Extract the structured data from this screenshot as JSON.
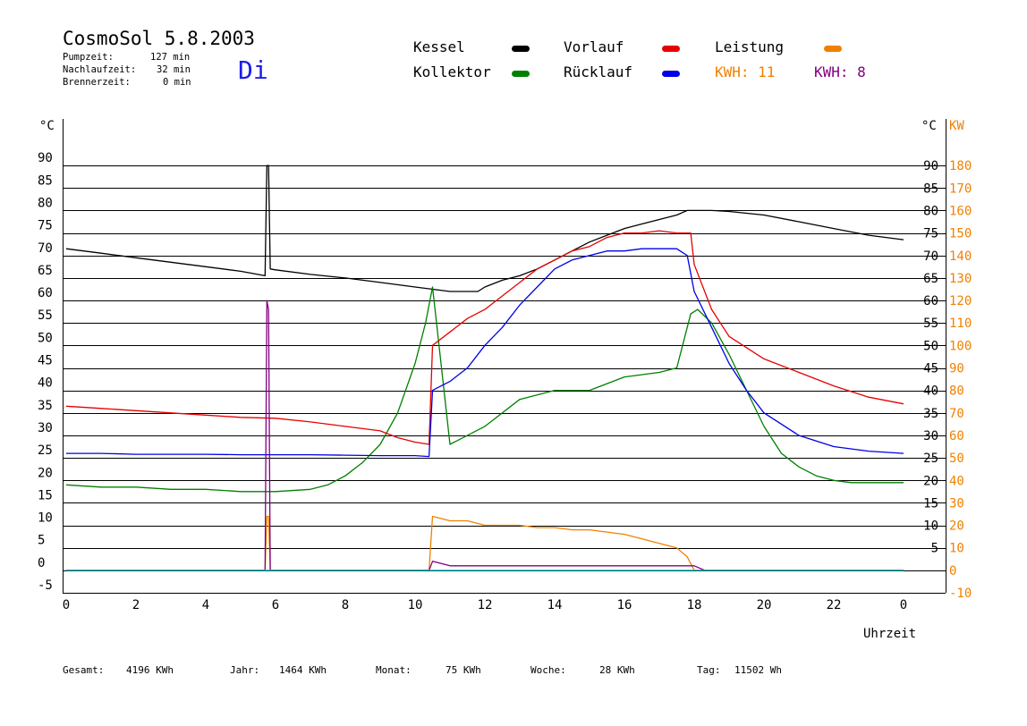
{
  "header": {
    "title": "CosmoSol 5.8.2003",
    "day": "Di",
    "stats": [
      {
        "label": "Pumpzeit:",
        "value": "127 min"
      },
      {
        "label": "Nachlaufzeit:",
        "value": "32 min"
      },
      {
        "label": "Brennerzeit:",
        "value": "0 min"
      }
    ]
  },
  "legend": {
    "kessel": {
      "label": "Kessel",
      "color": "#000000"
    },
    "vorlauf": {
      "label": "Vorlauf",
      "color": "#e60000"
    },
    "leistung": {
      "label": "Leistung",
      "color": "#f08000"
    },
    "kollektor": {
      "label": "Kollektor",
      "color": "#008000"
    },
    "ruecklauf": {
      "label": "Rücklauf",
      "color": "#0000e6"
    },
    "kwh1": "KWH: 11",
    "kwh2": "KWH: 8",
    "kwh1_color": "#f08000",
    "kwh2_color": "#800080"
  },
  "footer": {
    "gesamt_label": "Gesamt:",
    "gesamt_value": "4196 KWh",
    "jahr_label": "Jahr:",
    "jahr_value": "1464 KWh",
    "monat_label": "Monat:",
    "monat_value": "75 KWh",
    "woche_label": "Woche:",
    "woche_value": "28 KWh",
    "tag_label": "Tag:",
    "tag_value": "11502 Wh"
  },
  "chart_data": {
    "type": "line",
    "xlabel": "Uhrzeit",
    "ylabel_left": "°C",
    "ylabel_right": "KW",
    "xlim": [
      0,
      24
    ],
    "ylim_left": [
      -5,
      95
    ],
    "ylim_right": [
      -10,
      190
    ],
    "x_ticks": [
      "0",
      "2",
      "4",
      "6",
      "8",
      "10",
      "12",
      "14",
      "16",
      "18",
      "20",
      "22",
      "0"
    ],
    "y_ticks_left": [
      "-5",
      "0",
      "5",
      "10",
      "15",
      "20",
      "25",
      "30",
      "35",
      "40",
      "45",
      "50",
      "55",
      "60",
      "65",
      "70",
      "75",
      "80",
      "85",
      "90"
    ],
    "y_ticks_right_temp": [
      "5",
      "10",
      "15",
      "20",
      "25",
      "30",
      "35",
      "40",
      "45",
      "50",
      "55",
      "60",
      "65",
      "70",
      "75",
      "80",
      "85",
      "90"
    ],
    "y_ticks_right_kw": [
      "-10",
      "0",
      "10",
      "20",
      "30",
      "40",
      "50",
      "60",
      "70",
      "80",
      "90",
      "100",
      "110",
      "120",
      "130",
      "140",
      "150",
      "160",
      "170",
      "180"
    ],
    "grid": "horizontal",
    "series": [
      {
        "name": "Kessel",
        "color": "#000000",
        "x": [
          0,
          1,
          2,
          3,
          4,
          5,
          5.7,
          5.75,
          5.8,
          5.85,
          6,
          7,
          8,
          9,
          10,
          10.5,
          11,
          11.5,
          11.8,
          12,
          12.5,
          13,
          13.5,
          14,
          14.5,
          15,
          15.5,
          16,
          16.5,
          17,
          17.5,
          17.8,
          18,
          18.5,
          19,
          20,
          21,
          22,
          23,
          24
        ],
        "y": [
          71.5,
          70.5,
          69.5,
          68.5,
          67.5,
          66.5,
          65.5,
          90,
          90,
          67,
          66.8,
          65.8,
          65,
          64,
          63,
          62.5,
          62,
          62,
          62,
          63,
          64.5,
          65.5,
          67,
          69,
          71,
          73,
          74.5,
          76,
          77,
          78,
          79,
          80,
          80,
          80,
          79.8,
          79,
          77.5,
          76,
          74.5,
          73.5
        ]
      },
      {
        "name": "Kollektor",
        "color": "#008000",
        "x": [
          0,
          1,
          2,
          3,
          4,
          5,
          6,
          7,
          7.5,
          8,
          8.5,
          9,
          9.5,
          10,
          10.3,
          10.5,
          11,
          12,
          13,
          14,
          15,
          16,
          17,
          17.5,
          17.9,
          18.1,
          18.5,
          19,
          19.5,
          20,
          20.5,
          21,
          21.5,
          22,
          22.5,
          23,
          24
        ],
        "y": [
          19,
          18.5,
          18.5,
          18,
          18,
          17.5,
          17.5,
          18,
          19,
          21,
          24,
          28,
          35,
          46,
          55,
          63,
          28,
          32,
          38,
          40,
          40,
          43,
          44,
          45,
          57,
          58,
          55,
          48,
          40,
          32,
          26,
          23,
          21,
          20,
          19.5,
          19.5,
          19.5
        ]
      },
      {
        "name": "Vorlauf",
        "color": "#e60000",
        "x": [
          0,
          1,
          2,
          3,
          4,
          5,
          6,
          7,
          8,
          9,
          9.5,
          10,
          10.4,
          10.5,
          11,
          11.5,
          12,
          12.5,
          13,
          13.5,
          14,
          14.5,
          15,
          15.5,
          16,
          16.5,
          17,
          17.5,
          17.9,
          18,
          18.5,
          19,
          20,
          21,
          22,
          23,
          24
        ],
        "y": [
          36.5,
          36,
          35.5,
          35,
          34.5,
          34,
          33.8,
          33,
          32,
          31,
          29.5,
          28.5,
          28,
          50,
          53,
          56,
          58,
          61,
          64,
          67,
          69,
          71,
          72,
          74,
          75,
          75,
          75.5,
          75,
          75,
          68,
          58,
          52,
          47,
          44,
          41,
          38.5,
          37
        ]
      },
      {
        "name": "Rücklauf",
        "color": "#0000e6",
        "x": [
          0,
          1,
          2,
          3,
          4,
          5,
          6,
          7,
          8,
          9,
          10,
          10.4,
          10.5,
          11,
          11.5,
          12,
          12.5,
          13,
          13.5,
          14,
          14.5,
          15,
          15.5,
          16,
          16.5,
          17,
          17.5,
          17.8,
          18,
          18.5,
          19,
          19.5,
          20,
          21,
          22,
          23,
          24
        ],
        "y": [
          26,
          26,
          25.8,
          25.8,
          25.8,
          25.7,
          25.7,
          25.7,
          25.6,
          25.5,
          25.5,
          25.3,
          40,
          42,
          45,
          50,
          54,
          59,
          63,
          67,
          69,
          70,
          71,
          71,
          71.5,
          71.5,
          71.5,
          70,
          62,
          54,
          46,
          40,
          35,
          30,
          27.5,
          26.5,
          26
        ]
      },
      {
        "name": "Leistung",
        "color": "#f08000",
        "x": [
          0,
          5.7,
          5.75,
          5.8,
          5.85,
          10.4,
          10.5,
          11,
          11.5,
          12,
          12.5,
          13,
          13.5,
          14,
          14.5,
          15,
          15.5,
          16,
          16.5,
          17,
          17.5,
          17.8,
          18,
          24
        ],
        "y": [
          0,
          0,
          12,
          12,
          0,
          0,
          12,
          11,
          11,
          10,
          10,
          10,
          9.5,
          9.5,
          9,
          9,
          8.5,
          8,
          7,
          6,
          5,
          3,
          0,
          0
        ]
      },
      {
        "name": "Leistung (Rücklauf)",
        "color": "#800080",
        "x": [
          0,
          5.7,
          5.75,
          5.8,
          5.85,
          10.4,
          10.5,
          11,
          12,
          13,
          14,
          15,
          16,
          17,
          17.5,
          18,
          18.3,
          24
        ],
        "y": [
          0,
          0,
          60,
          58,
          0,
          0,
          2,
          1,
          1,
          1,
          1,
          1,
          1,
          1,
          1,
          1,
          0,
          0
        ]
      },
      {
        "name": "Nulllinie",
        "color": "#00c8c8",
        "x": [
          0,
          24
        ],
        "y": [
          0,
          0
        ]
      }
    ]
  }
}
